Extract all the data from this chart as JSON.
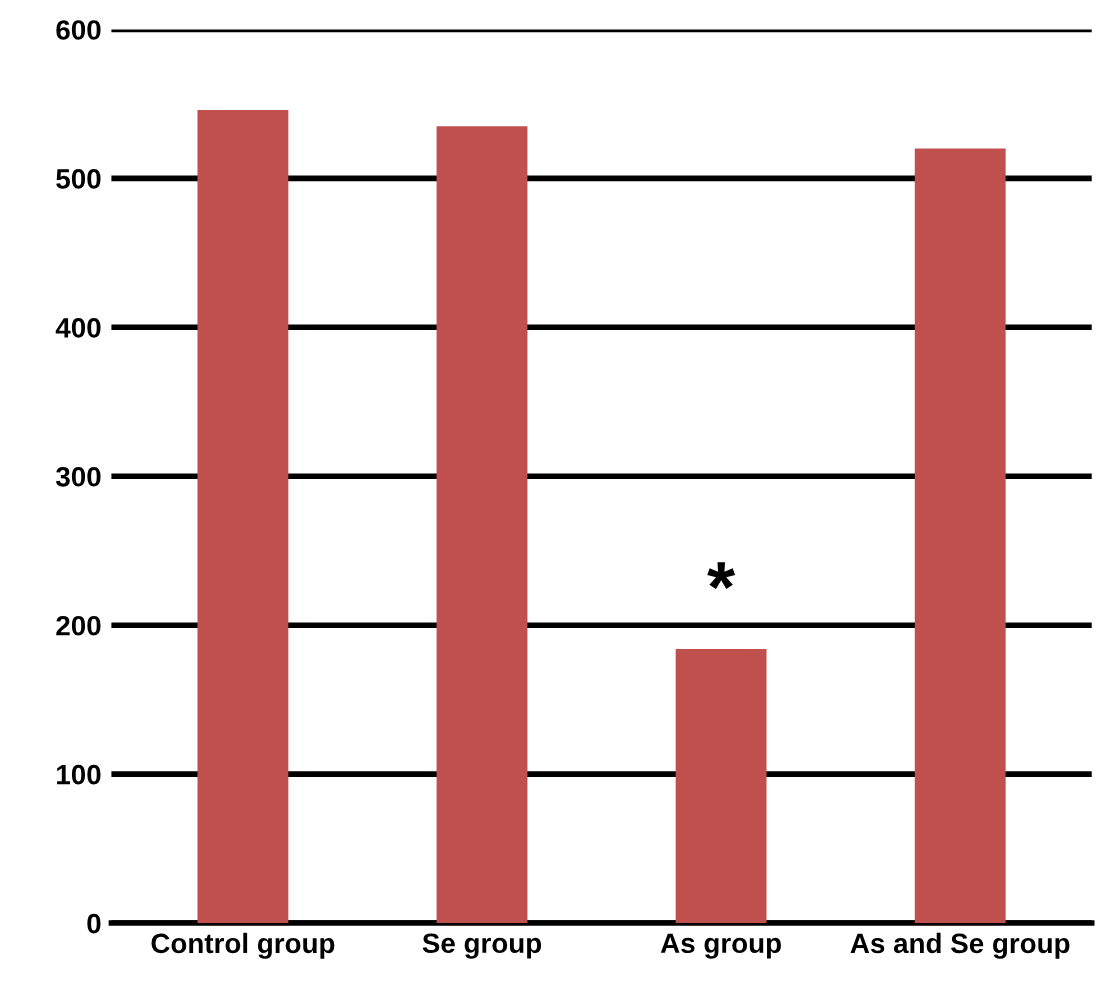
{
  "chart_data": {
    "type": "bar",
    "categories": [
      "Control group",
      "Se group",
      "As group",
      "As and Se group"
    ],
    "values": [
      546,
      535,
      184,
      520
    ],
    "color": "#c0504d",
    "ylim": [
      0,
      600
    ],
    "yticks": [
      0,
      100,
      200,
      300,
      400,
      500,
      600
    ],
    "grid": "y",
    "annotations": [
      {
        "text": "*",
        "x": "As group",
        "y": 184
      }
    ]
  }
}
